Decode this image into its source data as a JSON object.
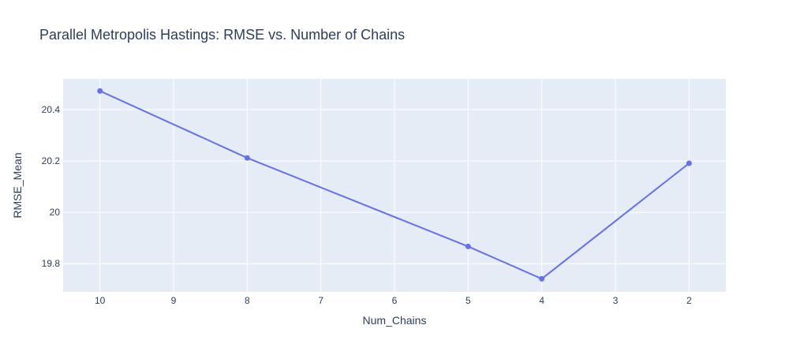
{
  "chart_data": {
    "type": "line",
    "title": "Parallel Metropolis Hastings: RMSE vs. Number of Chains",
    "xlabel": "Num_Chains",
    "ylabel": "RMSE_Mean",
    "x_reversed": true,
    "xlim": [
      10.5,
      1.5
    ],
    "ylim": [
      19.69,
      20.52
    ],
    "x_ticks": [
      10,
      9,
      8,
      7,
      6,
      5,
      4,
      3,
      2
    ],
    "x_tick_labels": [
      "10",
      "9",
      "8",
      "7",
      "6",
      "5",
      "4",
      "3",
      "2"
    ],
    "y_ticks": [
      19.8,
      20.0,
      20.2,
      20.4
    ],
    "y_tick_labels": [
      "19.8",
      "20",
      "20.2",
      "20.4"
    ],
    "grid": true,
    "legend": "none",
    "series": [
      {
        "x": [
          10,
          8,
          5,
          4,
          2
        ],
        "y": [
          20.473,
          20.212,
          19.867,
          19.741,
          20.191
        ]
      }
    ],
    "colors": {
      "plot_bg": "#e5ecf6",
      "series": "#636efa",
      "text": "#2a3f5f"
    }
  }
}
